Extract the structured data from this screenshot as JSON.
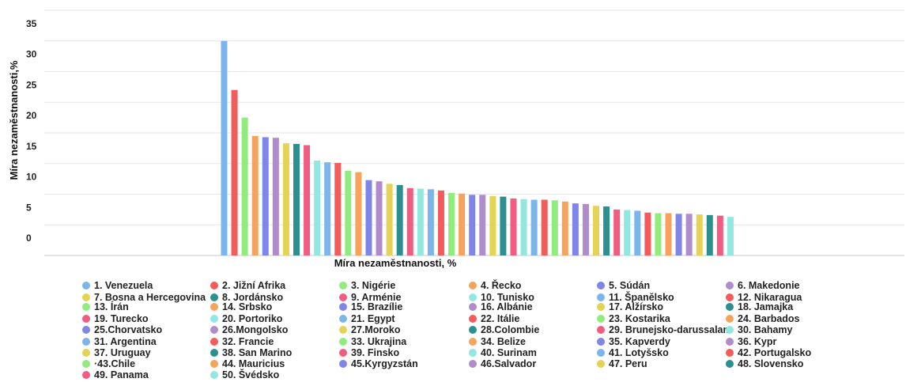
{
  "chart_data": {
    "type": "bar",
    "xlabel": "Míra nezaměstnanosti, %",
    "ylabel": "Míra nezaměstnanosti,%",
    "ylim": [
      0,
      40
    ],
    "yticks": [
      "0",
      "5",
      "10",
      "15",
      "20",
      "25",
      "30",
      "35",
      "40"
    ],
    "grid": true,
    "legend_position": "bottom",
    "categories": [
      "1. Venezuela",
      "2. Jižní Afrika",
      "3. Nigérie",
      "4. Řecko",
      "5. Súdán",
      "6. Makedonie",
      "7. Bosna a Hercegovina",
      "8. Jordánsko",
      "9. Arménie",
      "10. Tunisko",
      "11. Španělsko",
      "12. Nikaragua",
      "13. Írán",
      "14. Srbsko",
      "15. Brazílie",
      "16. Albánie",
      "17. Alžírsko",
      "18. Jamajka",
      "19. Turecko",
      "20. Portoriko",
      "21. Egypt",
      "22. Itálie",
      "23. Kostarika",
      "24. Barbados",
      "25.Chorvatsko",
      "26.Mongolsko",
      "27.Moroko",
      "28.Colombie",
      "29. Brunejsko-darussalam",
      "30. Bahamy",
      "31. Argentina",
      "32. Francie",
      "33. Ukrajina",
      "34. Belize",
      "35. Kapverdy",
      "36. Kypr",
      "37. Uruguay",
      "38. San Marino",
      "39. Finsko",
      "40. Surinam",
      "41. Lotyšsko",
      "42. Portugalsko",
      "·43.Chile",
      "44. Mauricius",
      "45.Kyrgyzstán",
      "46.Salvador",
      "47. Peru",
      "48. Slovensko",
      "49. Panama",
      "50. Švédsko"
    ],
    "values": [
      35.0,
      27.0,
      22.5,
      19.5,
      19.3,
      19.2,
      18.3,
      18.2,
      18.0,
      15.5,
      15.2,
      15.1,
      13.8,
      13.6,
      12.3,
      12.1,
      11.7,
      11.5,
      11.0,
      10.9,
      10.8,
      10.6,
      10.2,
      10.1,
      9.9,
      9.9,
      9.7,
      9.6,
      9.3,
      9.2,
      9.1,
      9.1,
      9.0,
      8.8,
      8.5,
      8.4,
      8.1,
      8.0,
      7.5,
      7.4,
      7.3,
      7.0,
      6.9,
      6.9,
      6.8,
      6.8,
      6.7,
      6.6,
      6.5,
      6.3
    ],
    "colors": [
      "#7cb5ec",
      "#f45b5b",
      "#90ed7d",
      "#f7a35c",
      "#8085e9",
      "#b08ccc",
      "#e4d354",
      "#2b908f",
      "#f15c80",
      "#91e8e1",
      "#7cb5ec",
      "#f45b5b",
      "#90ed7d",
      "#f7a35c",
      "#8085e9",
      "#b08ccc",
      "#e4d354",
      "#2b908f",
      "#f15c80",
      "#91e8e1",
      "#7cb5ec",
      "#f45b5b",
      "#90ed7d",
      "#f7a35c",
      "#8085e9",
      "#b08ccc",
      "#e4d354",
      "#2b908f",
      "#f15c80",
      "#91e8e1",
      "#7cb5ec",
      "#f45b5b",
      "#90ed7d",
      "#f7a35c",
      "#8085e9",
      "#b08ccc",
      "#e4d354",
      "#2b908f",
      "#f15c80",
      "#91e8e1",
      "#7cb5ec",
      "#f45b5b",
      "#90ed7d",
      "#f7a35c",
      "#8085e9",
      "#b08ccc",
      "#e4d354",
      "#2b908f",
      "#f15c80",
      "#91e8e1"
    ]
  }
}
